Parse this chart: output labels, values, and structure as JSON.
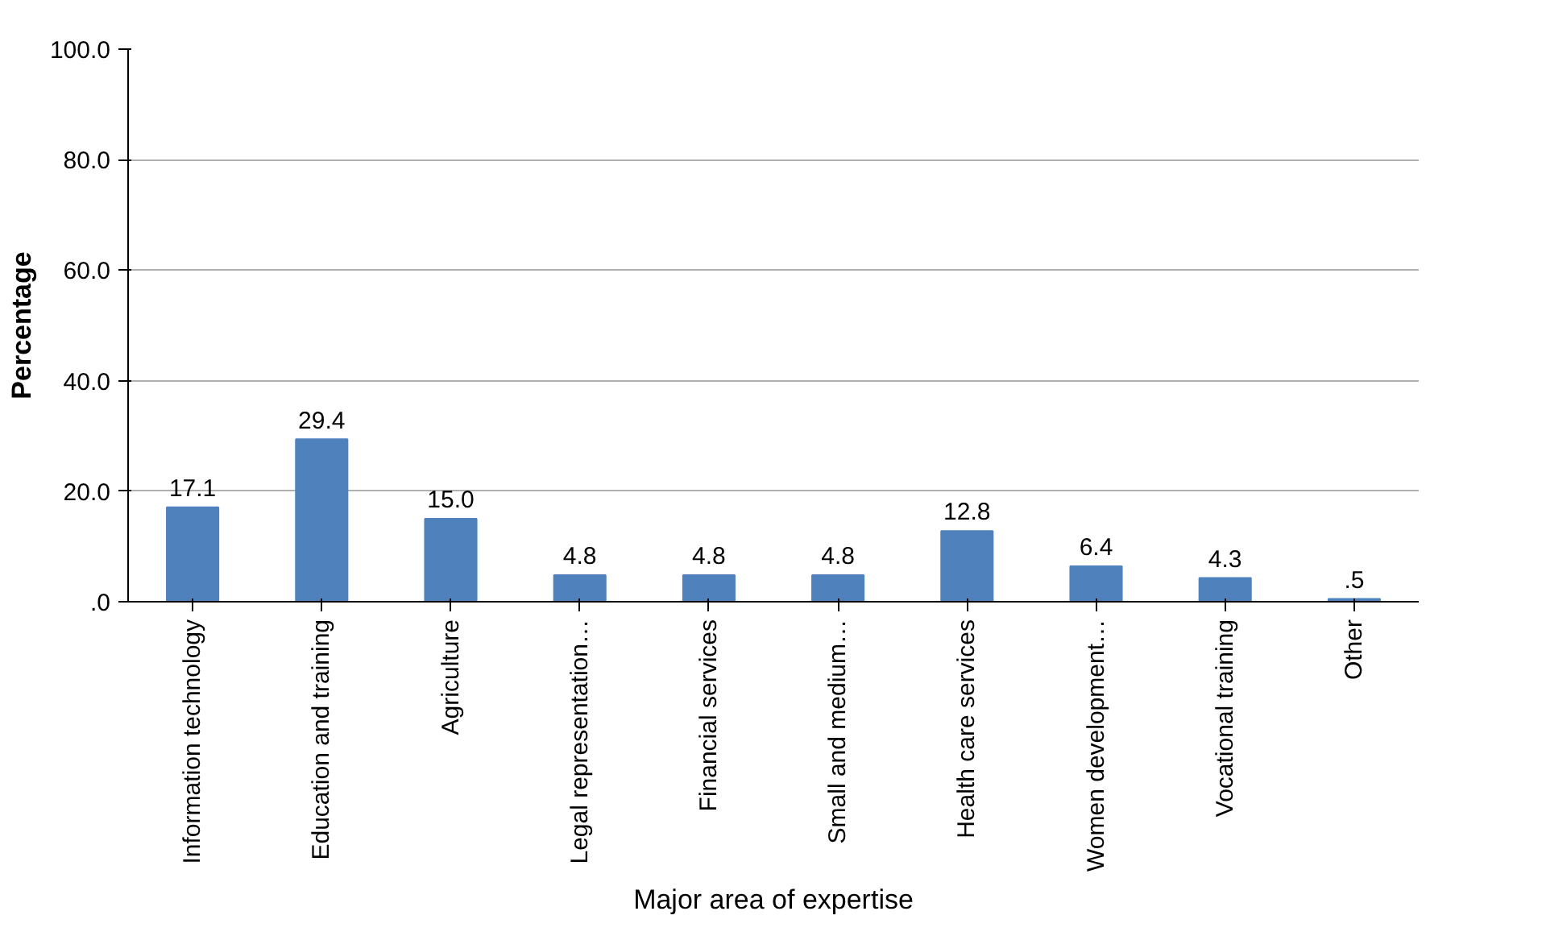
{
  "chart_data": {
    "type": "bar",
    "ylabel": "Percentage",
    "xlabel": "Major area of expertise",
    "categories": [
      "Information technology",
      "Education and training",
      "Agriculture",
      "Legal representation…",
      "Financial services",
      "Small and medium…",
      "Health care services",
      "Women development…",
      "Vocational training",
      "Other"
    ],
    "values": [
      17.1,
      29.4,
      15.0,
      4.8,
      4.8,
      4.8,
      12.8,
      6.4,
      4.3,
      0.5
    ],
    "value_labels": [
      "17.1",
      "29.4",
      "15.0",
      "4.8",
      "4.8",
      "4.8",
      "12.8",
      "6.4",
      "4.3",
      ".5"
    ],
    "color": "#4f81bd",
    "ylim": [
      0,
      100
    ],
    "yticks": [
      {
        "value": 0,
        "label": ".0"
      },
      {
        "value": 20,
        "label": "20.0"
      },
      {
        "value": 40,
        "label": "40.0"
      },
      {
        "value": 60,
        "label": "60.0"
      },
      {
        "value": 80,
        "label": "80.0"
      },
      {
        "value": 100,
        "label": "100.0"
      }
    ],
    "grid": "y"
  }
}
